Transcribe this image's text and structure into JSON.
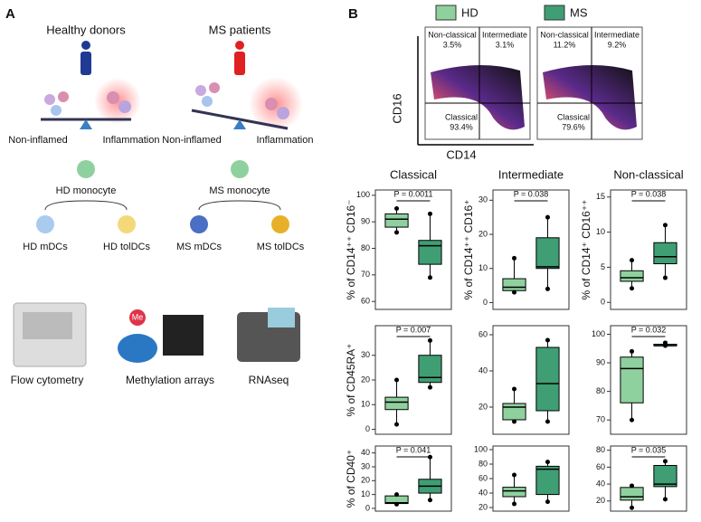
{
  "panel_a": {
    "label": "A",
    "groups": [
      {
        "title": "Healthy donors",
        "left": "Non-inflamed",
        "right": "Inflammation",
        "monocyte": "HD monocyte",
        "dc1": "HD mDCs",
        "dc2": "HD tolDCs"
      },
      {
        "title": "MS patients",
        "left": "Non-inflamed",
        "right": "Inflammation",
        "monocyte": "MS monocyte",
        "dc1": "MS mDCs",
        "dc2": "MS tolDCs"
      }
    ],
    "techniques": [
      "Flow cytometry",
      "Methylation arrays",
      "RNAseq"
    ],
    "me": "Me"
  },
  "panel_b": {
    "label": "B"
  },
  "flow": {
    "xlabel": "CD14",
    "ylabel": "CD16",
    "plots": [
      {
        "nc": "Non-classical",
        "ncv": "3.5%",
        "im": "Intermediate",
        "imv": "3.1%",
        "cl": "Classical",
        "clv": "93.4%"
      },
      {
        "nc": "Non-classical",
        "ncv": "11.2%",
        "im": "Intermediate",
        "imv": "9.2%",
        "cl": "Classical",
        "clv": "79.6%"
      }
    ]
  },
  "chart_data": [
    {
      "type": "box",
      "title": "Classical",
      "ylabel": "% of CD14⁺⁺ CD16⁻",
      "annotation": "P = 0.0011",
      "ylim": [
        57,
        102
      ],
      "yticks": [
        60,
        70,
        80,
        90,
        100
      ],
      "series": [
        {
          "name": "HD",
          "color": "#8fd19e",
          "min": 86,
          "q1": 88,
          "median": 91,
          "q3": 93,
          "max": 95
        },
        {
          "name": "MS",
          "color": "#3f9e74",
          "min": 69,
          "q1": 74,
          "median": 81,
          "q3": 83,
          "max": 93
        }
      ]
    },
    {
      "type": "box",
      "title": "Intermediate",
      "ylabel": "% of CD14⁺⁺ CD16⁺",
      "annotation": "P = 0.038",
      "ylim": [
        -2,
        33
      ],
      "yticks": [
        0,
        10,
        20,
        30
      ],
      "series": [
        {
          "name": "HD",
          "color": "#8fd19e",
          "min": 3,
          "q1": 3.5,
          "median": 4.5,
          "q3": 7,
          "max": 13
        },
        {
          "name": "MS",
          "color": "#3f9e74",
          "min": 4,
          "q1": 10,
          "median": 10.5,
          "q3": 19,
          "max": 25
        }
      ]
    },
    {
      "type": "box",
      "title": "Non-classical",
      "ylabel": "% of CD14⁺ CD16⁺⁺",
      "annotation": "P = 0.038",
      "ylim": [
        -1,
        16
      ],
      "yticks": [
        0,
        5,
        10,
        15
      ],
      "series": [
        {
          "name": "HD",
          "color": "#8fd19e",
          "min": 2,
          "q1": 3,
          "median": 3.5,
          "q3": 4.5,
          "max": 6
        },
        {
          "name": "MS",
          "color": "#3f9e74",
          "min": 3.5,
          "q1": 5.5,
          "median": 6.5,
          "q3": 8.5,
          "max": 11
        }
      ]
    },
    {
      "type": "box",
      "ylabel": "% of CD45RA⁺",
      "annotation": "P = 0.007",
      "ylim": [
        -2,
        42
      ],
      "yticks": [
        0,
        10,
        20,
        30
      ],
      "series": [
        {
          "name": "HD",
          "color": "#8fd19e",
          "min": 2,
          "q1": 8,
          "median": 11,
          "q3": 13,
          "max": 20
        },
        {
          "name": "MS",
          "color": "#3f9e74",
          "min": 17,
          "q1": 19,
          "median": 21,
          "q3": 30,
          "max": 36
        }
      ]
    },
    {
      "type": "box",
      "ylim": [
        5,
        65
      ],
      "yticks": [
        20,
        40,
        60
      ],
      "series": [
        {
          "name": "HD",
          "color": "#8fd19e",
          "min": 12,
          "q1": 13,
          "median": 20,
          "q3": 22,
          "max": 30
        },
        {
          "name": "MS",
          "color": "#3f9e74",
          "min": 12,
          "q1": 18,
          "median": 33,
          "q3": 53,
          "max": 57
        }
      ]
    },
    {
      "type": "box",
      "annotation": "P = 0.032",
      "ylim": [
        65,
        103
      ],
      "yticks": [
        70,
        80,
        90,
        100
      ],
      "series": [
        {
          "name": "HD",
          "color": "#8fd19e",
          "min": 70,
          "q1": 76,
          "median": 88,
          "q3": 92,
          "max": 94
        },
        {
          "name": "MS",
          "color": "#3f9e74",
          "min": 96,
          "q1": 96,
          "median": 96,
          "q3": 96.5,
          "max": 97
        }
      ]
    },
    {
      "type": "box",
      "ylabel": "% of CD40⁺",
      "annotation": "P = 0.041",
      "ylim": [
        -2,
        45
      ],
      "yticks": [
        0,
        10,
        20,
        30,
        40
      ],
      "series": [
        {
          "name": "HD",
          "color": "#8fd19e",
          "min": 3,
          "q1": 3.5,
          "median": 4,
          "q3": 9,
          "max": 10
        },
        {
          "name": "MS",
          "color": "#3f9e74",
          "min": 6,
          "q1": 11,
          "median": 16,
          "q3": 21,
          "max": 37
        }
      ]
    },
    {
      "type": "box",
      "ylim": [
        15,
        105
      ],
      "yticks": [
        20,
        40,
        60,
        80,
        100
      ],
      "series": [
        {
          "name": "HD",
          "color": "#8fd19e",
          "min": 25,
          "q1": 35,
          "median": 43,
          "q3": 48,
          "max": 65
        },
        {
          "name": "MS",
          "color": "#3f9e74",
          "min": 28,
          "q1": 38,
          "median": 73,
          "q3": 77,
          "max": 83
        }
      ]
    },
    {
      "type": "box",
      "annotation": "P = 0.035",
      "ylim": [
        8,
        85
      ],
      "yticks": [
        20,
        40,
        60,
        80
      ],
      "series": [
        {
          "name": "HD",
          "color": "#8fd19e",
          "min": 12,
          "q1": 21,
          "median": 25,
          "q3": 36,
          "max": 38
        },
        {
          "name": "MS",
          "color": "#3f9e74",
          "min": 22,
          "q1": 37,
          "median": 40,
          "q3": 62,
          "max": 67
        }
      ]
    }
  ]
}
